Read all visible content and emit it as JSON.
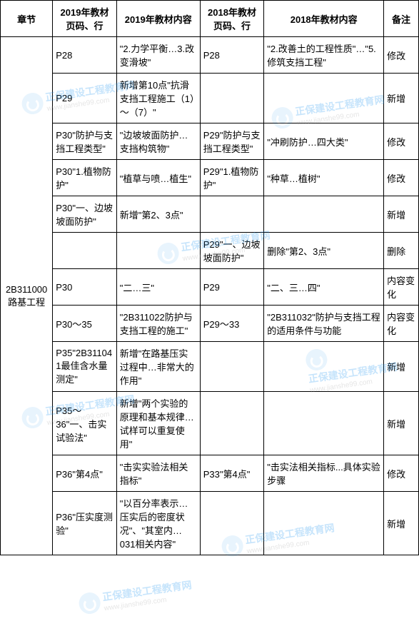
{
  "headers": {
    "chapter": "章节",
    "page19": "2019年教材页码、行",
    "content19": "2019年教材内容",
    "page18": "2018年教材页码、行",
    "content18": "2018年教材内容",
    "note": "备注"
  },
  "chapter": "2B311000路基工程",
  "rows": [
    {
      "p19": "P28",
      "c19": "\"2.力学平衡…3.改变滑坡\"",
      "p18": "P28",
      "c18": "\"2.改善土的工程性质\"…\"5.修筑支挡工程\"",
      "note": "修改"
    },
    {
      "p19": "P29",
      "c19": "新增第10点\"抗滑支挡工程施工（1）～（7）\"",
      "p18": "",
      "c18": "",
      "note": "新增"
    },
    {
      "p19": "P30\"防护与支挡工程类型\"",
      "c19": "\"边坡坡面防护…支挡构筑物\"",
      "p18": "P29\"防护与支挡工程类型\"",
      "c18": "\"冲刷防护…四大类\"",
      "note": "修改"
    },
    {
      "p19": "P30\"1.植物防护\"",
      "c19": "\"植草与喷…植生\"",
      "p18": "P29\"1.植物防护\"",
      "c18": "\"种草…植树\"",
      "note": "修改"
    },
    {
      "p19": "P30\"一、边坡坡面防护\"",
      "c19": "新增\"第2、3点\"",
      "p18": "",
      "c18": "",
      "note": "新增"
    },
    {
      "p19": "",
      "c19": "",
      "p18": "P29\"一、边坡坡面防护\"",
      "c18": "删除\"第2、3点\"",
      "note": "删除"
    },
    {
      "p19": "P30",
      "c19": "\"二…三\"",
      "p18": "P29",
      "c18": "\"二、三…四\"",
      "note": "内容变化"
    },
    {
      "p19": "P30～35",
      "c19": "\"2B311022防护与支挡工程的施工\"",
      "p18": "P29～33",
      "c18": "\"2B311032\"防护与支挡工程的适用条件与功能",
      "note": "内容变化"
    },
    {
      "p19": "P35\"2B311041最佳含水量测定\"",
      "c19": "新增\"在路基压实过程中…非常大的作用\"",
      "p18": "",
      "c18": "",
      "note": "新增"
    },
    {
      "p19": "P35～36\"一、击实试验法\"",
      "c19": "新增\"两个实验的原理和基本规律…试样可以重复使用\"",
      "p18": "",
      "c18": "",
      "note": "新增"
    },
    {
      "p19": "P36\"第4点\"",
      "c19": "\"击实实验法相关指标\"",
      "p18": "P33\"第4点\"",
      "c18": "\"击实法相关指标...具体实验步骤",
      "note": "修改"
    },
    {
      "p19": "P36\"压实度测验\"",
      "c19": "\"以百分率表示…压实后的密度状况\"、\"其室内…031相关内容\"",
      "p18": "",
      "c18": "",
      "note": "新增"
    }
  ],
  "watermark": {
    "cn": "正保建设工程教育网",
    "en": "www.jianshe99.com"
  }
}
